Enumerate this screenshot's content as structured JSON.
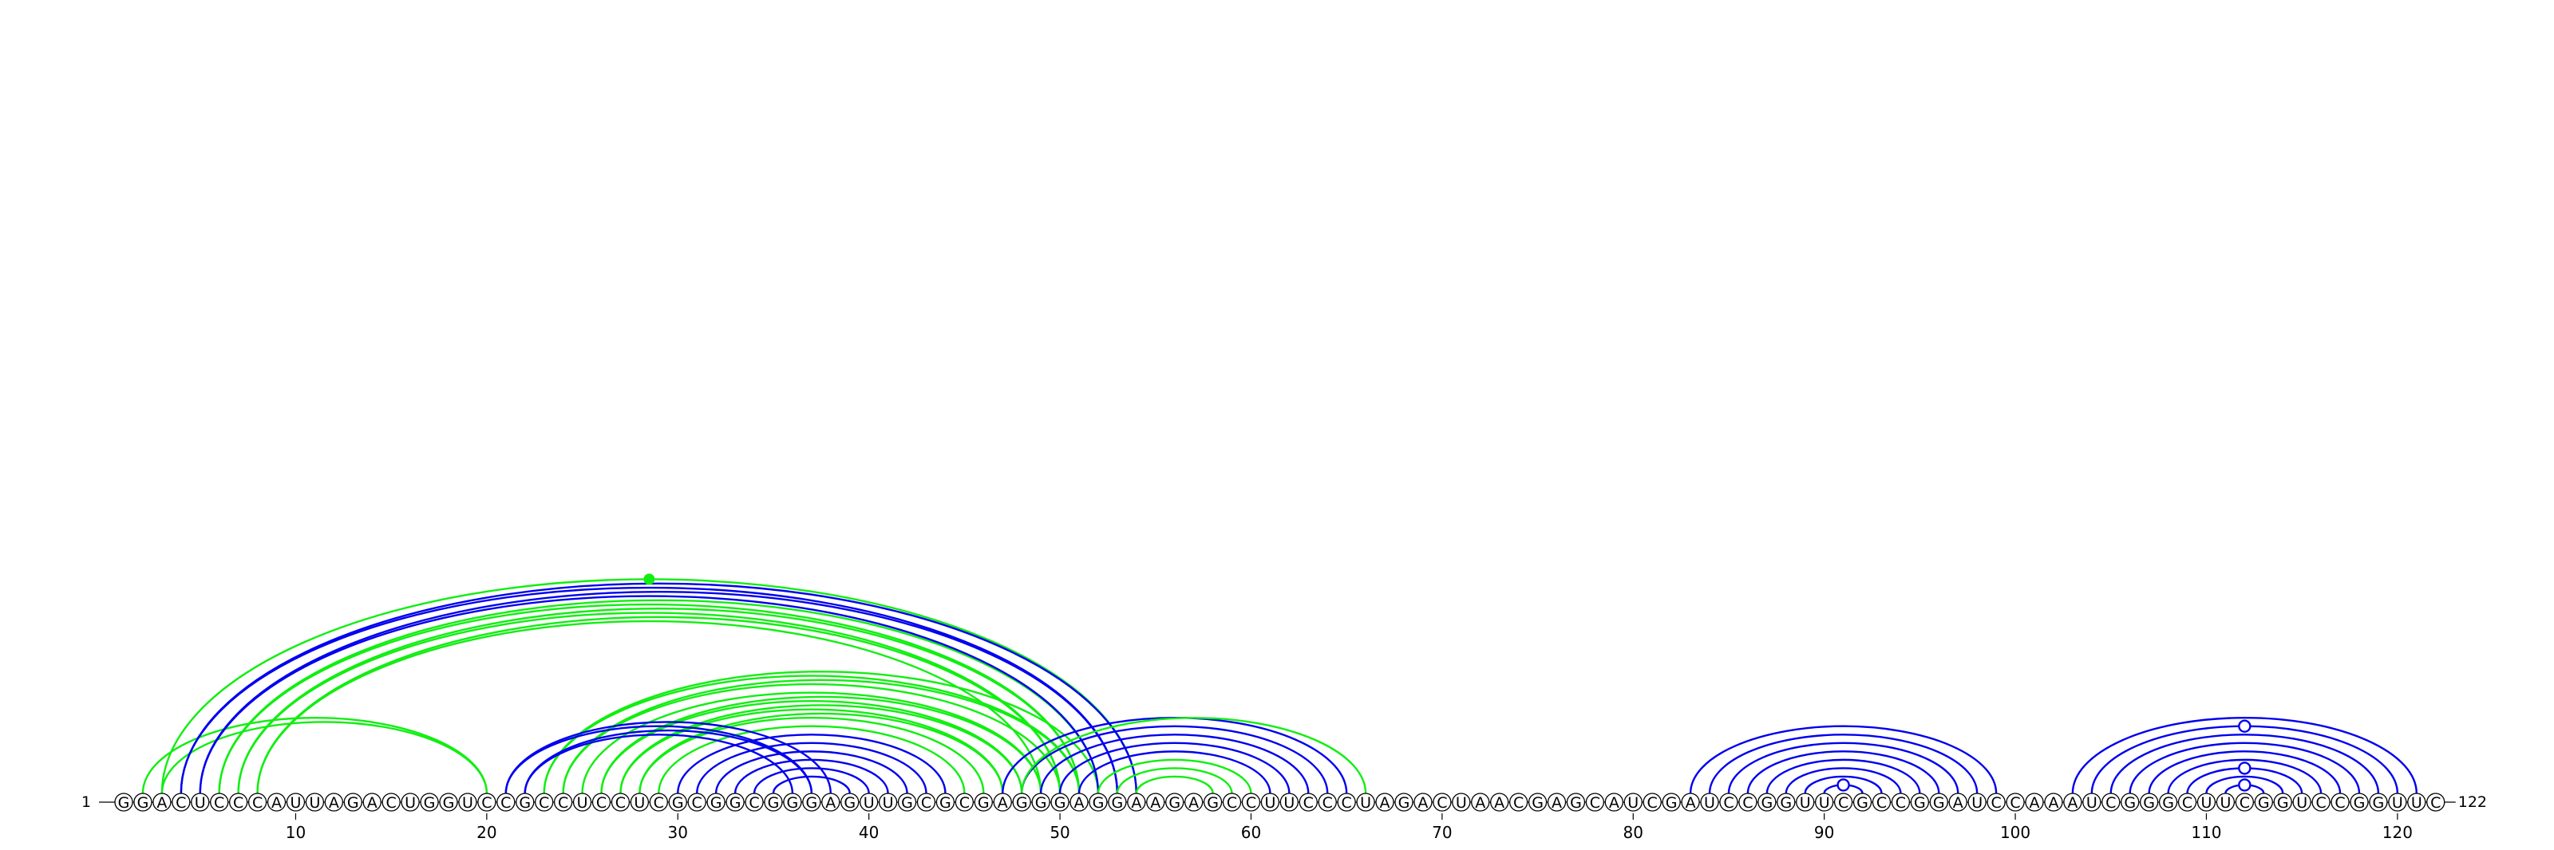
{
  "sequence": "GGACUCCCAUUAGACUGGUCCGCCUCCUCGCGGCGGGAGUUGCGCGAGGGAGGAAGAGCCUUCCCUAGACUAACGAGCAUCGAUCCGGUUCGCCGGAUCCAAAUCGGGCUUCGGUCCGGUUC",
  "start_label": "1",
  "end_label": "122",
  "tick_positions": [
    10,
    20,
    30,
    40,
    50,
    60,
    70,
    80,
    90,
    100,
    110,
    120
  ],
  "tick_labels": [
    "10",
    "20",
    "30",
    "40",
    "50",
    "60",
    "70",
    "80",
    "90",
    "100",
    "110",
    "120"
  ],
  "colors": {
    "blue": "#0000ee",
    "green": "#11ee11",
    "outline": "#000000"
  },
  "arc_groups": [
    {
      "color": "green",
      "pairs": [
        [
          2,
          20
        ],
        [
          3,
          20
        ],
        [
          3,
          54
        ],
        [
          6,
          51
        ],
        [
          6,
          52
        ],
        [
          7,
          50
        ],
        [
          7,
          51
        ],
        [
          8,
          49
        ],
        [
          8,
          50
        ],
        [
          23,
          51
        ],
        [
          23,
          52
        ],
        [
          24,
          50
        ],
        [
          24,
          51
        ],
        [
          25,
          49
        ],
        [
          26,
          48
        ],
        [
          26,
          49
        ],
        [
          27,
          47
        ],
        [
          27,
          48
        ],
        [
          28,
          46
        ],
        [
          28,
          47
        ],
        [
          29,
          45
        ]
      ]
    },
    {
      "color": "blue",
      "pairs": [
        [
          4,
          53
        ],
        [
          4,
          54
        ],
        [
          5,
          52
        ],
        [
          5,
          53
        ],
        [
          21,
          37
        ],
        [
          21,
          38
        ],
        [
          22,
          36
        ],
        [
          22,
          37
        ],
        [
          30,
          44
        ],
        [
          31,
          43
        ],
        [
          32,
          42
        ],
        [
          33,
          41
        ],
        [
          34,
          40
        ],
        [
          35,
          39
        ]
      ]
    },
    {
      "color": "blue",
      "pairs": [
        [
          47,
          65
        ],
        [
          48,
          64
        ],
        [
          49,
          63
        ],
        [
          50,
          62
        ],
        [
          51,
          61
        ]
      ]
    },
    {
      "color": "green",
      "pairs": [
        [
          48,
          66
        ],
        [
          52,
          60
        ],
        [
          53,
          59
        ],
        [
          54,
          58
        ]
      ]
    },
    {
      "color": "blue",
      "pairs": [
        [
          83,
          99
        ],
        [
          84,
          98
        ],
        [
          85,
          97
        ],
        [
          86,
          96
        ],
        [
          87,
          95
        ],
        [
          88,
          94
        ],
        [
          89,
          93
        ],
        [
          90,
          92
        ]
      ]
    },
    {
      "color": "blue",
      "pairs": [
        [
          103,
          121
        ],
        [
          104,
          120
        ],
        [
          105,
          119
        ],
        [
          106,
          118
        ],
        [
          107,
          117
        ],
        [
          108,
          116
        ],
        [
          109,
          115
        ],
        [
          110,
          114
        ],
        [
          111,
          113
        ]
      ]
    }
  ],
  "markers": [
    {
      "type": "dot",
      "color": "green",
      "between": [
        3,
        54
      ]
    },
    {
      "type": "ring",
      "color": "blue",
      "between": [
        90,
        92
      ]
    },
    {
      "type": "ring",
      "color": "blue",
      "between": [
        111,
        113
      ]
    },
    {
      "type": "ring",
      "color": "blue",
      "between": [
        109,
        115
      ]
    },
    {
      "type": "ring",
      "color": "blue",
      "between": [
        104,
        120
      ]
    }
  ]
}
